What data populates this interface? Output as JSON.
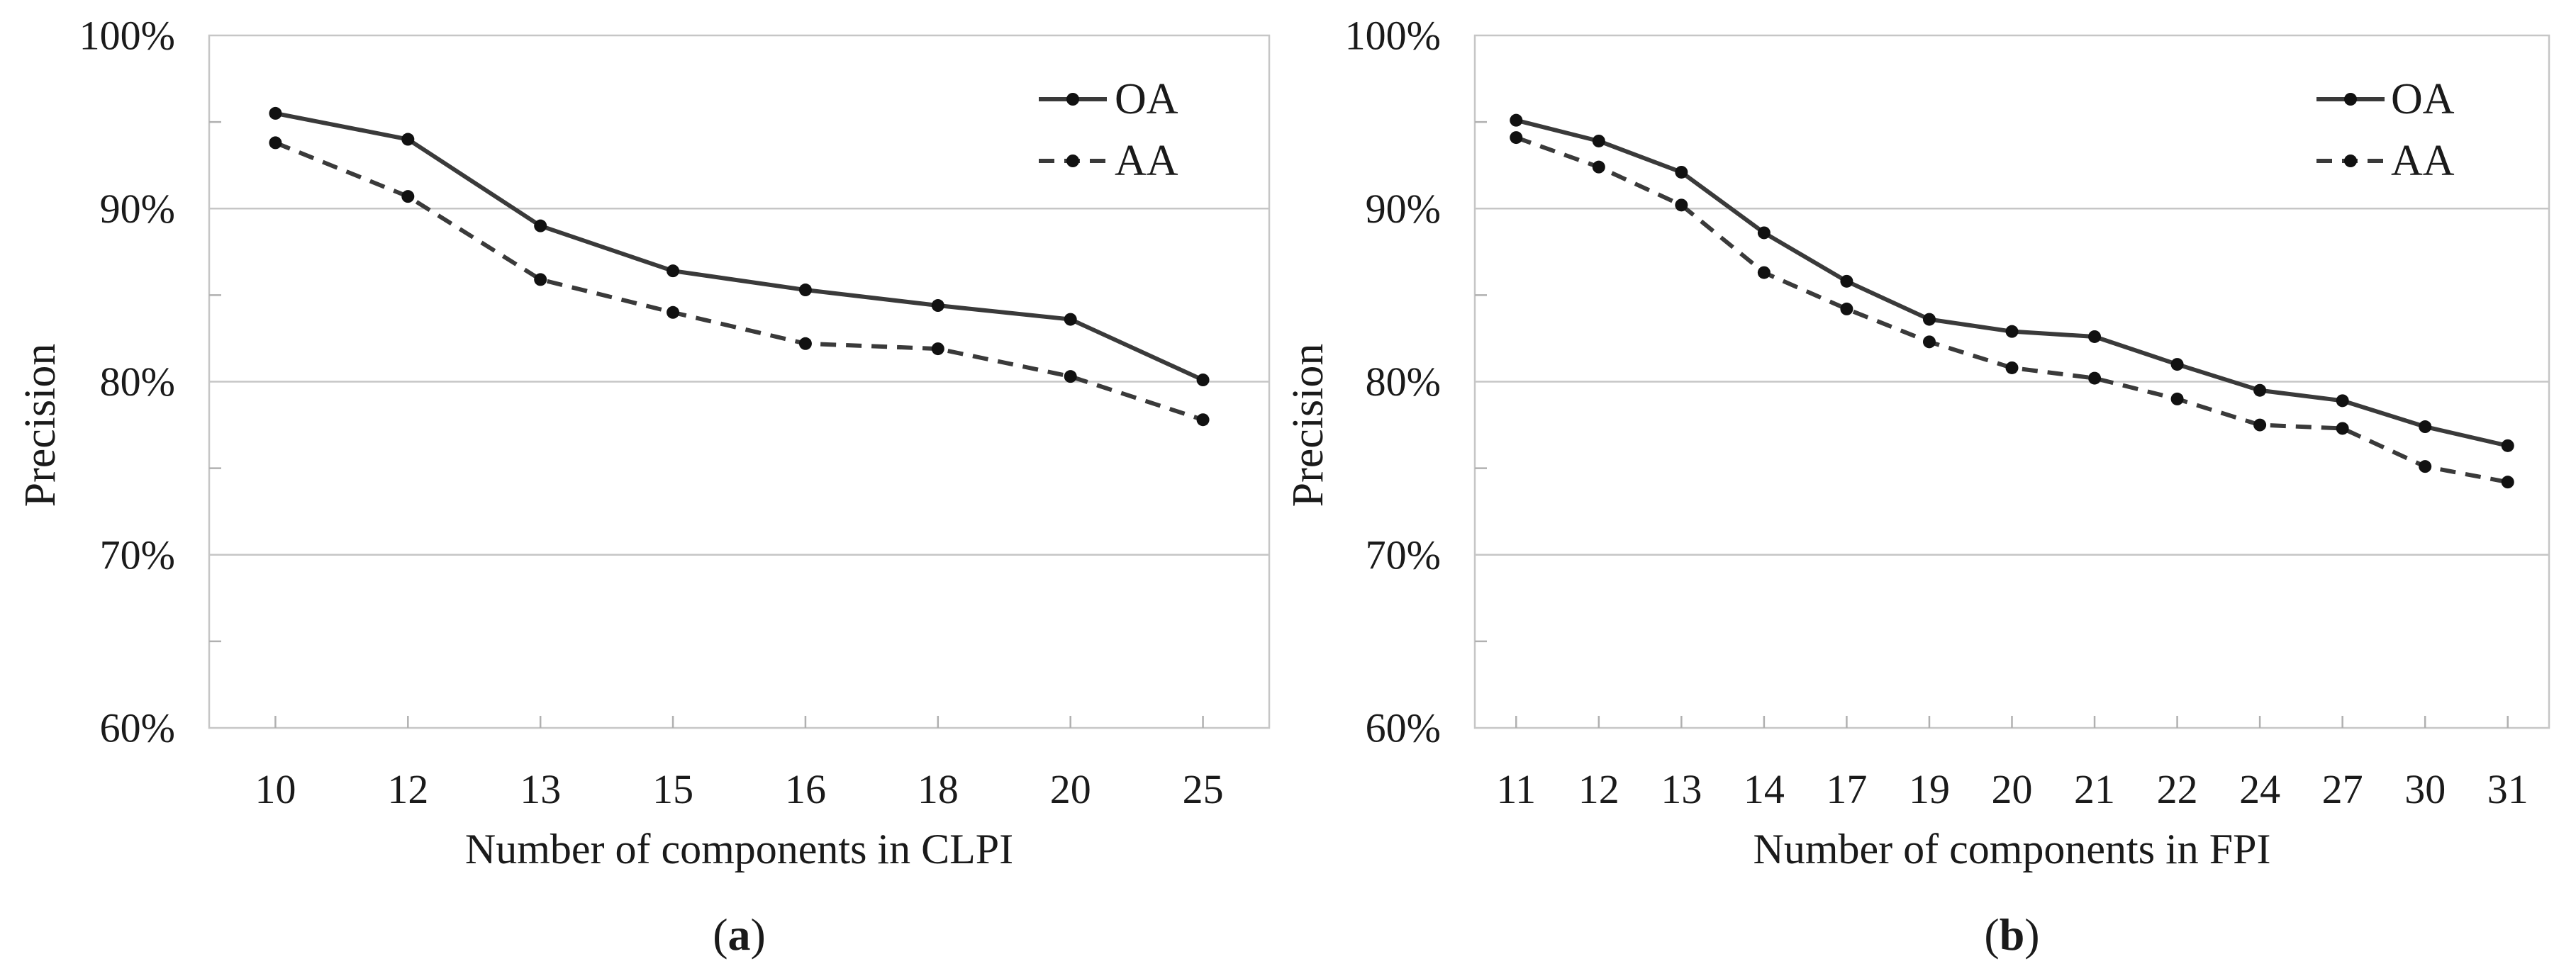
{
  "figure": {
    "background": "#ffffff",
    "colors": {
      "line": "#3a3a3a",
      "marker": "#111111",
      "grid": "#c6c6c6",
      "tick": "#b0b0b0",
      "text": "#1a1a1a"
    }
  },
  "chart_data": [
    {
      "type": "line",
      "panel": "a",
      "caption": "(a)",
      "caption_letter": "a",
      "xlabel": "Number of components in CLPI",
      "ylabel": "Precision",
      "ylim": [
        60,
        100
      ],
      "grid": "horizontal",
      "legend_position": "top-right",
      "y_tick_values": [
        100,
        90,
        80,
        70,
        60
      ],
      "y_tick_labels": [
        "100%",
        "90%",
        "80%",
        "70%",
        "60%"
      ],
      "categories": [
        "10",
        "12",
        "13",
        "15",
        "16",
        "18",
        "20",
        "25"
      ],
      "series": [
        {
          "name": "OA",
          "style": "solid",
          "values": [
            95.5,
            94.0,
            89.0,
            86.4,
            85.3,
            84.4,
            83.6,
            80.1
          ]
        },
        {
          "name": "AA",
          "style": "dashed",
          "values": [
            93.8,
            90.7,
            85.9,
            84.0,
            82.2,
            81.9,
            80.3,
            77.8
          ]
        }
      ]
    },
    {
      "type": "line",
      "panel": "b",
      "caption": "(b)",
      "caption_letter": "b",
      "xlabel": "Number of components in FPI",
      "ylabel": "Precision",
      "ylim": [
        60,
        100
      ],
      "grid": "horizontal",
      "legend_position": "top-right",
      "y_tick_values": [
        100,
        90,
        80,
        70,
        60
      ],
      "y_tick_labels": [
        "100%",
        "90%",
        "80%",
        "70%",
        "60%"
      ],
      "categories": [
        "11",
        "12",
        "13",
        "14",
        "17",
        "19",
        "20",
        "21",
        "22",
        "24",
        "27",
        "30",
        "31"
      ],
      "series": [
        {
          "name": "OA",
          "style": "solid",
          "values": [
            95.1,
            93.9,
            92.1,
            88.6,
            85.8,
            83.6,
            82.9,
            82.6,
            81.0,
            79.5,
            78.9,
            77.4,
            76.3
          ]
        },
        {
          "name": "AA",
          "style": "dashed",
          "values": [
            94.1,
            92.4,
            90.2,
            86.3,
            84.2,
            82.3,
            80.8,
            80.2,
            79.0,
            77.5,
            77.3,
            75.1,
            74.2
          ]
        }
      ]
    }
  ]
}
